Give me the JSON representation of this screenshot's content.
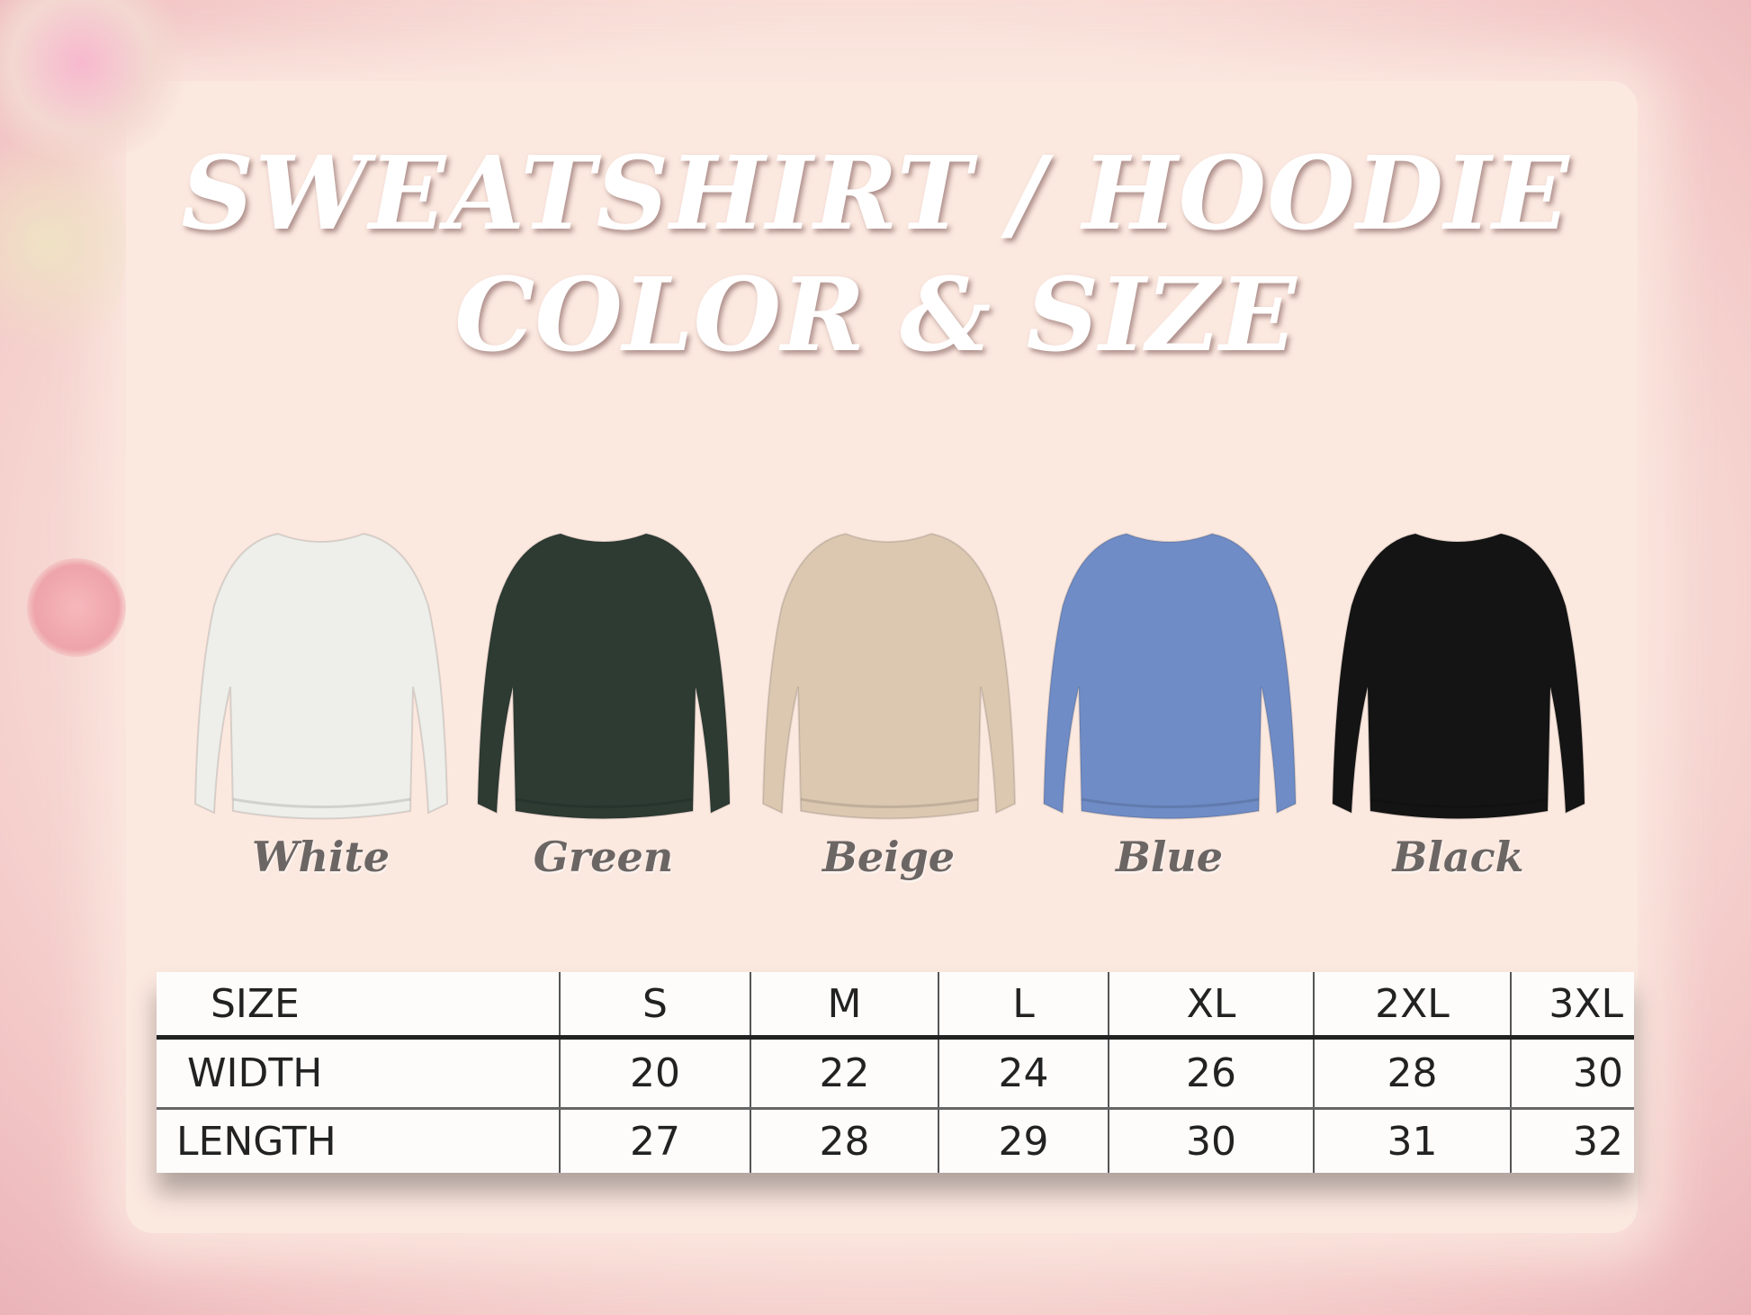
{
  "title": {
    "line1": "SWEATSHIRT / HOODIE",
    "line2": "COLOR & SIZE"
  },
  "colors": [
    {
      "label": "White",
      "hex": "#eeeeea"
    },
    {
      "label": "Green",
      "hex": "#2d3b33"
    },
    {
      "label": "Beige",
      "hex": "#dcc8b1"
    },
    {
      "label": "Blue",
      "hex": "#6f8cc6"
    },
    {
      "label": "Black",
      "hex": "#141414"
    }
  ],
  "size_table": {
    "header": [
      "SIZE",
      "S",
      "M",
      "L",
      "XL",
      "2XL",
      "3XL"
    ],
    "rows": [
      [
        "WIDTH",
        "20",
        "22",
        "24",
        "26",
        "28",
        "30"
      ],
      [
        "LENGTH",
        "27",
        "28",
        "29",
        "30",
        "31",
        "32"
      ]
    ]
  }
}
